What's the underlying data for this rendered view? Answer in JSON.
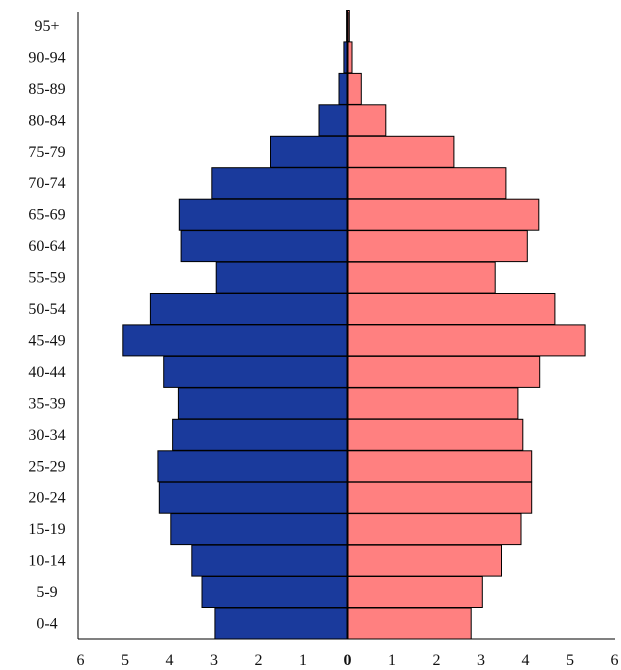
{
  "chart_data": {
    "type": "bar",
    "orientation": "horizontal",
    "layout": "population-pyramid",
    "categories": [
      "0-4",
      "5-9",
      "10-14",
      "15-19",
      "20-24",
      "25-29",
      "30-34",
      "35-39",
      "40-44",
      "45-49",
      "50-54",
      "55-59",
      "60-64",
      "65-69",
      "70-74",
      "75-79",
      "80-84",
      "85-89",
      "90-94",
      "95+"
    ],
    "series": [
      {
        "side": "left",
        "color": "#1a3a9c",
        "values": [
          2.98,
          3.27,
          3.5,
          3.97,
          4.23,
          4.26,
          3.93,
          3.8,
          4.13,
          5.05,
          4.43,
          2.95,
          3.74,
          3.78,
          3.05,
          1.73,
          0.64,
          0.19,
          0.08,
          0.02
        ]
      },
      {
        "side": "right",
        "color": "#ff8080",
        "values": [
          2.78,
          3.03,
          3.46,
          3.9,
          4.14,
          4.14,
          3.94,
          3.83,
          4.32,
          5.34,
          4.66,
          3.32,
          4.04,
          4.3,
          3.56,
          2.39,
          0.86,
          0.31,
          0.1,
          0.04
        ]
      }
    ],
    "x_ticks": [
      "6",
      "5",
      "4",
      "3",
      "2",
      "1",
      "0",
      "1",
      "2",
      "3",
      "4",
      "5",
      "6"
    ],
    "xlim": [
      -6,
      6
    ],
    "title": "",
    "xlabel": "",
    "ylabel": "",
    "grid": false,
    "legend": "none"
  }
}
